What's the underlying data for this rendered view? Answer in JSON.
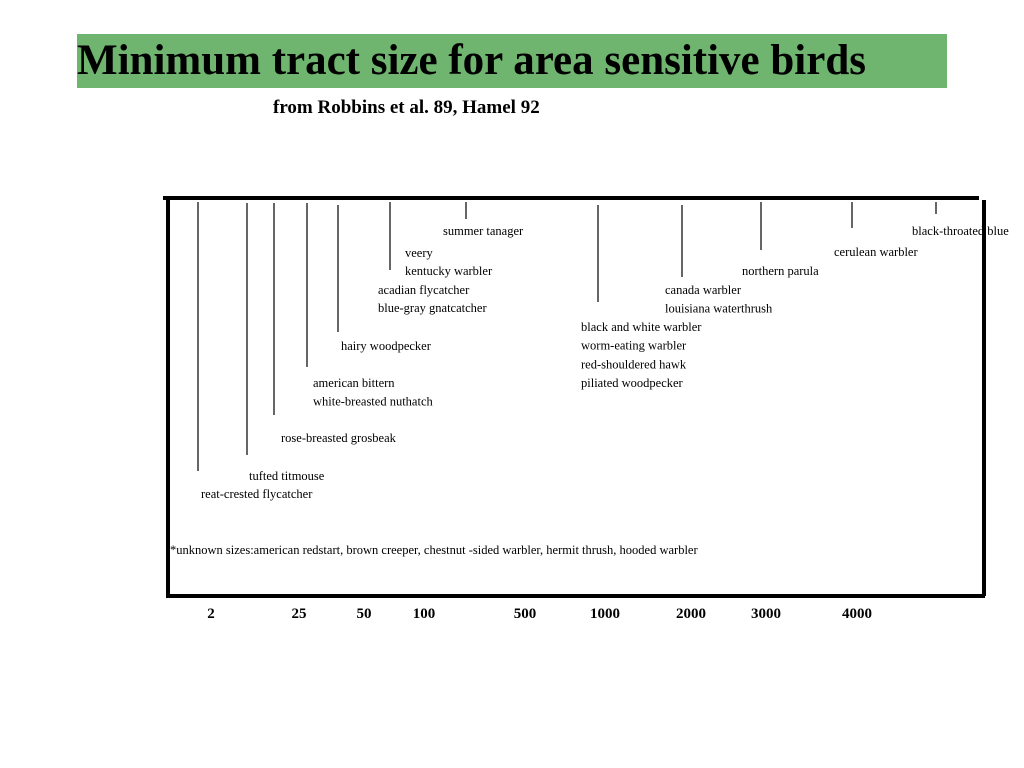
{
  "title": "Minimum tract size for area sensitive birds",
  "subtitle": "from Robbins et al. 89, Hamel 92",
  "colors": {
    "title_bar": "#6fb56f",
    "ink": "#000000"
  },
  "chart_data": {
    "type": "timeline",
    "title": "Minimum tract size for area sensitive birds",
    "subtitle": "from Robbins et al. 89, Hamel 92",
    "xlabel": "",
    "ylabel": "",
    "axis_ticks": [
      "2",
      "25",
      "50",
      "100",
      "500",
      "1000",
      "2000",
      "3000",
      "4000"
    ],
    "groups": [
      {
        "id": "g1",
        "species": [
          "reat-crested flycatcher"
        ]
      },
      {
        "id": "g2",
        "species": [
          "tufted titmouse"
        ]
      },
      {
        "id": "g3",
        "species": [
          "rose-breasted grosbeak"
        ]
      },
      {
        "id": "g4",
        "species": [
          "american bittern",
          "white-breasted nuthatch"
        ]
      },
      {
        "id": "g5",
        "species": [
          "hairy woodpecker"
        ]
      },
      {
        "id": "g6",
        "species": [
          "veery",
          "kentucky warbler",
          "acadian flycatcher",
          "blue-gray gnatcatcher"
        ]
      },
      {
        "id": "g7",
        "species": [
          "summer tanager"
        ]
      },
      {
        "id": "g8",
        "species": [
          "black and white warbler",
          "worm-eating warbler",
          "red-shouldered hawk",
          "piliated woodpecker"
        ]
      },
      {
        "id": "g9",
        "species": [
          "canada warbler",
          "louisiana waterthrush"
        ]
      },
      {
        "id": "g10",
        "species": [
          "northern parula"
        ]
      },
      {
        "id": "g11",
        "species": [
          "cerulean warbler"
        ]
      },
      {
        "id": "g12",
        "species": [
          "black-throated blue"
        ]
      }
    ],
    "footnote": "*unknown sizes:american redstart, brown creeper, chestnut -sided warbler, hermit thrush, hooded warbler"
  }
}
